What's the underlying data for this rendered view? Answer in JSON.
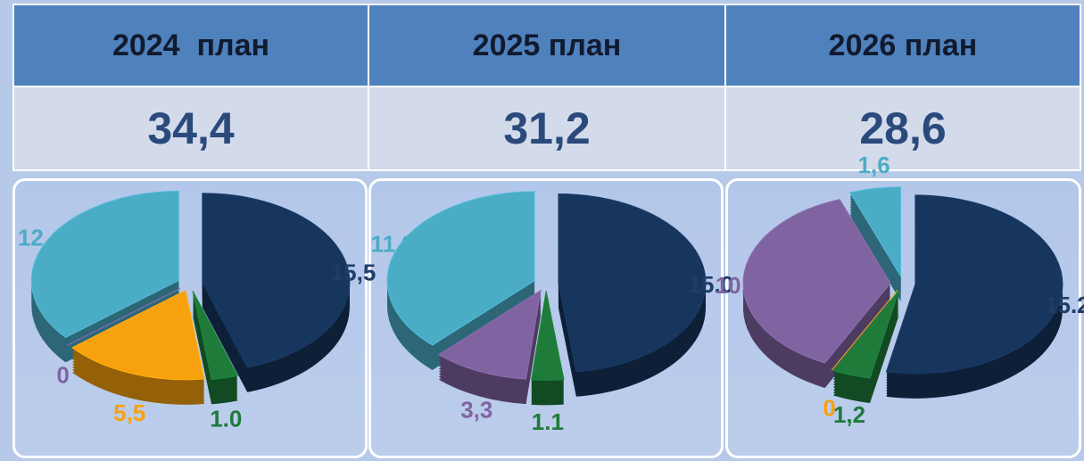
{
  "table": {
    "header": [
      "2024  план",
      "2025 план",
      "2026 план"
    ],
    "rows": [
      [
        "34,4",
        "31,2",
        "28,6"
      ]
    ]
  },
  "chart_data": [
    {
      "type": "pie",
      "values": [
        15.5,
        1.0,
        5.5,
        0,
        12.4
      ],
      "value_labels": [
        "15,5",
        "1.0",
        "5,5",
        "0",
        "12,4"
      ],
      "colors": [
        "#17365d",
        "#1e7b3a",
        "#f7a10f",
        "#8064a2",
        "#4bacc6"
      ]
    },
    {
      "type": "pie",
      "values": [
        15.0,
        1.1,
        3.3,
        11.8
      ],
      "value_labels": [
        "15.0",
        "1.1",
        "3,3",
        "11,8"
      ],
      "colors": [
        "#17365d",
        "#1e7b3a",
        "#8064a2",
        "#4bacc6"
      ]
    },
    {
      "type": "pie",
      "values": [
        15.2,
        1.2,
        0,
        10.6,
        1.6
      ],
      "value_labels": [
        "15.2",
        "1,2",
        "0",
        "10,6",
        "1,6"
      ],
      "colors": [
        "#17365d",
        "#1e7b3a",
        "#f7a10f",
        "#8064a2",
        "#4bacc6"
      ]
    }
  ]
}
